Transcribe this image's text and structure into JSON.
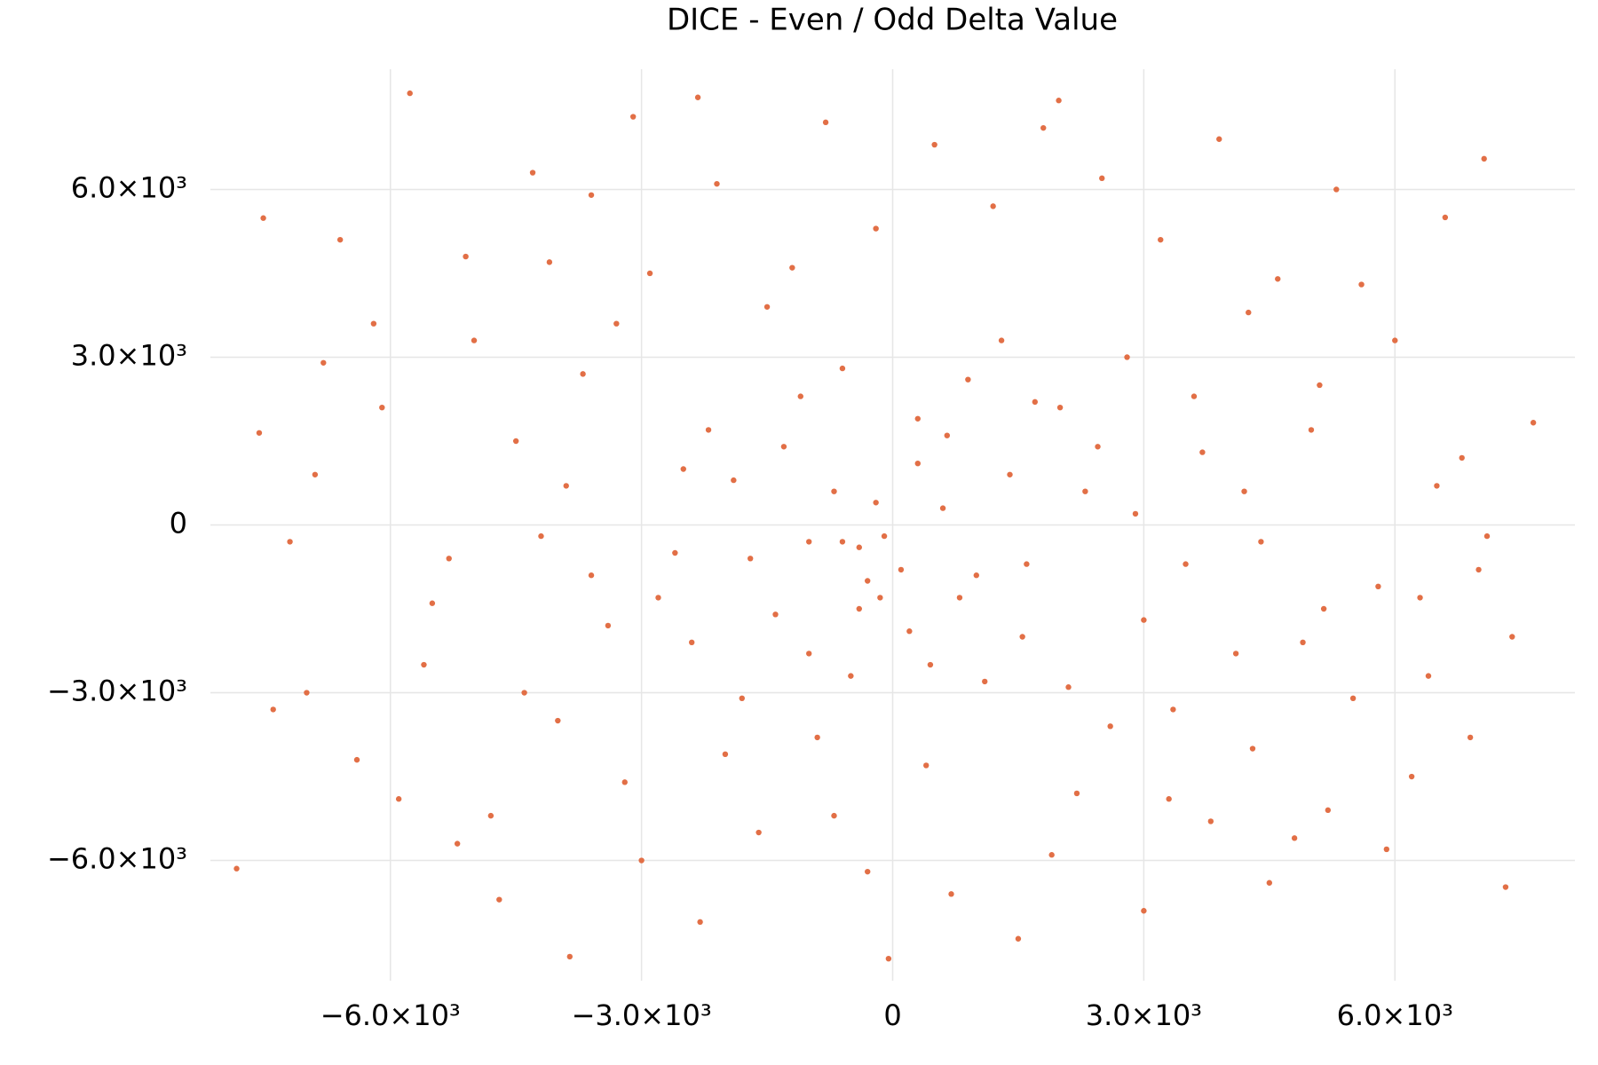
{
  "chart_data": {
    "type": "scatter",
    "title": "DICE - Even / Odd Delta Value",
    "color": "#e26f46",
    "grid": true,
    "xlim": [
      -8150,
      8150
    ],
    "ylim": [
      -8150,
      8150
    ],
    "xticks": [
      {
        "value": -6000,
        "label": "−6.0×10³"
      },
      {
        "value": -3000,
        "label": "−3.0×10³"
      },
      0,
      {
        "value": 3000,
        "label": "3.0×10³"
      },
      {
        "value": 6000,
        "label": "6.0×10³"
      }
    ],
    "yticks": [
      {
        "value": -6000,
        "label": "−6.0×10³"
      },
      {
        "value": -3000,
        "label": "−3.0×10³"
      },
      0,
      {
        "value": 3000,
        "label": "3.0×10³"
      },
      {
        "value": 6000,
        "label": "6.0×10³"
      }
    ],
    "x": [
      -7837,
      -7518,
      7653,
      -5767,
      -3857,
      -49,
      7322,
      -2327,
      1984,
      -7567,
      7065,
      -6200,
      -5100,
      -4300,
      -3600,
      -2900,
      -2100,
      -1500,
      -800,
      -200,
      500,
      1200,
      1800,
      2500,
      3200,
      3900,
      4600,
      5300,
      6000,
      6600,
      -6900,
      -6100,
      -5300,
      -4500,
      -3700,
      -2800,
      -1900,
      -1100,
      -400,
      300,
      1000,
      1700,
      2300,
      3000,
      3700,
      4400,
      5100,
      5800,
      6500,
      7100,
      -7000,
      -6400,
      -5600,
      -4800,
      -4000,
      -3200,
      -2400,
      -1600,
      -900,
      -300,
      400,
      1100,
      1900,
      2600,
      3300,
      4100,
      4800,
      5500,
      6200,
      6900,
      -600,
      -200,
      100,
      -400,
      300,
      -100,
      600,
      -700,
      200,
      -300,
      -1300,
      -1000,
      800,
      1400,
      -1700,
      1600,
      -2200,
      2000,
      -500,
      900,
      -5000,
      -4200,
      -3400,
      -2500,
      -1800,
      -1200,
      2800,
      3500,
      4200,
      4900,
      -6600,
      -5900,
      -4700,
      -3900,
      -3000,
      -2000,
      -700,
      700,
      1500,
      2200,
      3000,
      3800,
      4500,
      5200,
      5900,
      6400,
      6800,
      7400,
      -7200,
      -6800,
      -5500,
      -4400,
      -3300,
      -2600,
      -1400,
      -600,
      450,
      1300,
      2100,
      2900,
      3600,
      4300,
      5000,
      5600,
      6300,
      7000,
      -2300,
      -3100,
      -4100,
      -5200,
      -1000,
      -150,
      650,
      1550,
      2450,
      3350,
      4250,
      5150,
      -3600,
      -7400
    ],
    "values": [
      -6146,
      5488,
      1829,
      7720,
      -7720,
      -7756,
      -6476,
      7646,
      7591,
      1646,
      6549,
      3600,
      4800,
      6300,
      5900,
      4500,
      6100,
      3900,
      7200,
      5300,
      6800,
      5700,
      7100,
      6200,
      5100,
      6900,
      4400,
      6000,
      3300,
      5500,
      900,
      2100,
      -600,
      1500,
      2700,
      -1300,
      800,
      2300,
      -400,
      1900,
      -900,
      2200,
      600,
      -1700,
      1300,
      -300,
      2500,
      -1100,
      700,
      -200,
      -3000,
      -4200,
      -2500,
      -5200,
      -3500,
      -4600,
      -2100,
      -5500,
      -3800,
      -6200,
      -4300,
      -2800,
      -5900,
      -3600,
      -4900,
      -2300,
      -5600,
      -3100,
      -4500,
      -3800,
      -300,
      400,
      -800,
      -1500,
      1100,
      -200,
      300,
      600,
      -1900,
      -1000,
      1400,
      -2300,
      -1300,
      900,
      -600,
      -700,
      1700,
      2100,
      -2700,
      2600,
      3300,
      -200,
      -1800,
      1000,
      -3100,
      4600,
      3000,
      -700,
      600,
      -2100,
      5100,
      -4900,
      -6700,
      700,
      -6000,
      -4100,
      -5200,
      -6600,
      -7400,
      -4800,
      -6900,
      -5300,
      -6400,
      -5100,
      -5800,
      -2700,
      1200,
      -2000,
      -300,
      2900,
      -1400,
      -3000,
      3600,
      -500,
      -1600,
      2800,
      -2500,
      3300,
      -2900,
      200,
      2300,
      -4000,
      1700,
      4300,
      -1300,
      -800,
      -7100,
      7300,
      4700,
      -5700,
      -300,
      -1300,
      1600,
      -2000,
      1400,
      -3300,
      3800,
      -1500,
      -900,
      -3300
    ]
  }
}
